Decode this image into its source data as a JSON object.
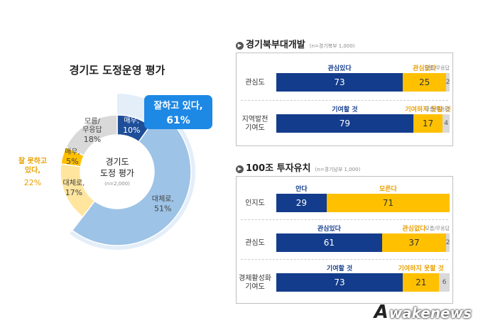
{
  "donut": {
    "title": "경기도 도정운영 평가",
    "center_title_1": "경기도",
    "center_title_2": "도정 평가",
    "center_note": "(n=2,000)",
    "callout_line1": "잘하고 있다,",
    "callout_line2": "61%",
    "left_group_line1": "잘 못하고",
    "left_group_line2": "있다,",
    "left_group_value": "22%",
    "colors": {
      "very_good": "#1f4e99",
      "good": "#9dc3e6",
      "bad": "#ffe59e",
      "very_bad": "#ffc000",
      "dk": "#d9d9d9",
      "callout": "#1e88e5"
    }
  },
  "chart_data": [
    {
      "type": "pie",
      "title": "경기도 도정운영 평가",
      "labels": [
        "매우,",
        "대체로,",
        "대체로,",
        "매우,",
        "모름/ 무응답"
      ],
      "values": [
        10,
        51,
        17,
        5,
        18
      ],
      "value_labels": [
        "10%",
        "51%",
        "17%",
        "5%",
        "18%"
      ],
      "groups": [
        {
          "name": "잘하고 있다",
          "value": 61
        },
        {
          "name": "잘 못하고 있다",
          "value": 22
        }
      ]
    },
    {
      "type": "bar",
      "section": "경기북부대개발",
      "section_note": "(n=경기북부 1,000)",
      "rows": [
        {
          "label": [
            "관심도"
          ],
          "hdr_pos": "관심있다",
          "hdr_neg": "관심없다",
          "hdr_dk": "모름/무응답",
          "values": [
            73,
            25,
            2
          ]
        },
        {
          "label": [
            "지역발전",
            "기여도"
          ],
          "hdr_pos": "기여할 것",
          "hdr_neg": "기여하지 못할 것",
          "hdr_dk": "모름/무응답",
          "values": [
            79,
            17,
            4
          ]
        }
      ]
    },
    {
      "type": "bar",
      "section": "100조 투자유치",
      "section_note": "(n=경기남부 1,000)",
      "rows": [
        {
          "label": [
            "인지도"
          ],
          "hdr_pos": "안다",
          "hdr_neg": "모른다",
          "hdr_dk": "",
          "values": [
            29,
            71
          ]
        },
        {
          "label": [
            "관심도"
          ],
          "hdr_pos": "관심있다",
          "hdr_neg": "관심없다",
          "hdr_dk": "모름/무응답",
          "values": [
            61,
            37,
            2
          ]
        },
        {
          "label": [
            "경제활성화",
            "기여도"
          ],
          "hdr_pos": "기여할 것",
          "hdr_neg": "기여하지 못할 것",
          "hdr_dk": "",
          "values": [
            73,
            21,
            6
          ]
        }
      ]
    }
  ],
  "watermark": {
    "logo_letter": "A",
    "text": "wakenews"
  }
}
